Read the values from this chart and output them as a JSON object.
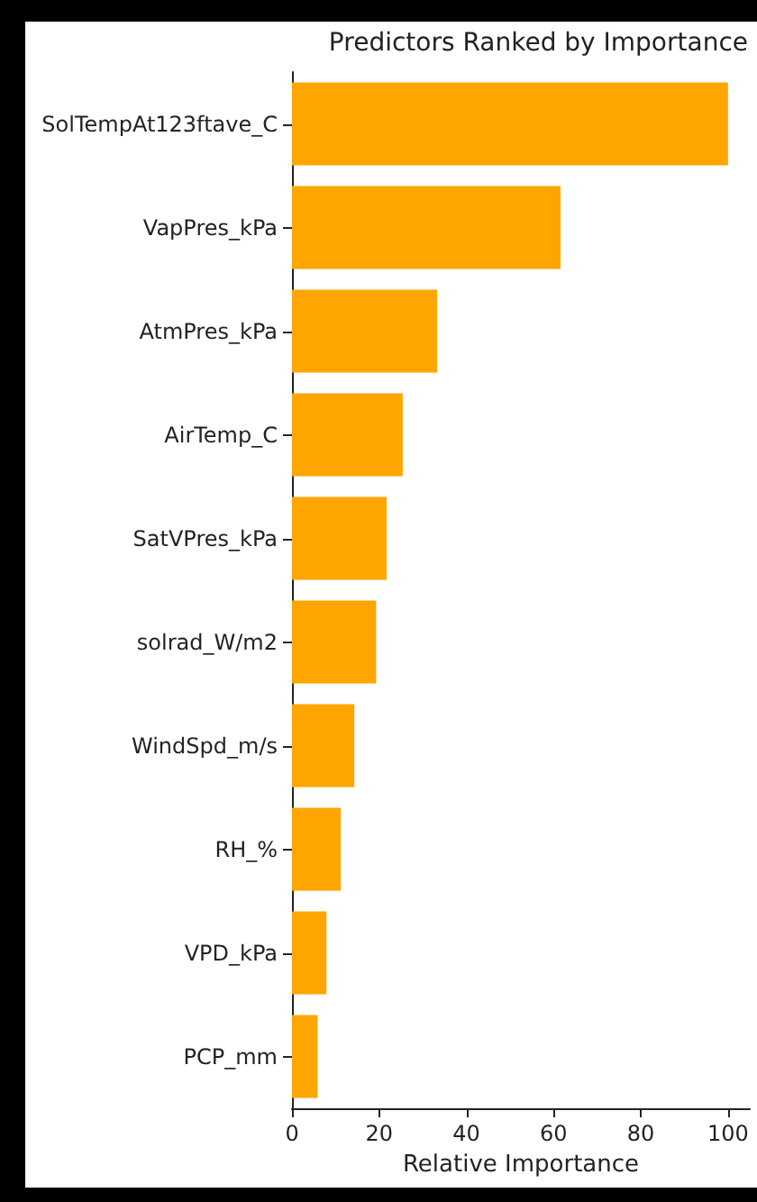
{
  "chart_data": {
    "type": "bar",
    "orientation": "horizontal",
    "title": "Predictors Ranked by Importance",
    "xlabel": "Relative Importance",
    "categories": [
      "SolTempAt123ftave_C",
      "VapPres_kPa",
      "AtmPres_kPa",
      "AirTemp_C",
      "SatVPres_kPa",
      "solrad_W/m2",
      "WindSpd_m/s",
      "RH_%",
      "VPD_kPa",
      "PCP_mm"
    ],
    "values": [
      100,
      61.6,
      33.3,
      25.4,
      21.7,
      19.3,
      14.3,
      11.2,
      7.9,
      5.9
    ],
    "color": "#ffa500",
    "xlim": [
      0,
      105
    ],
    "xticks": [
      0,
      20,
      40,
      60,
      80,
      100
    ],
    "grid": false
  }
}
